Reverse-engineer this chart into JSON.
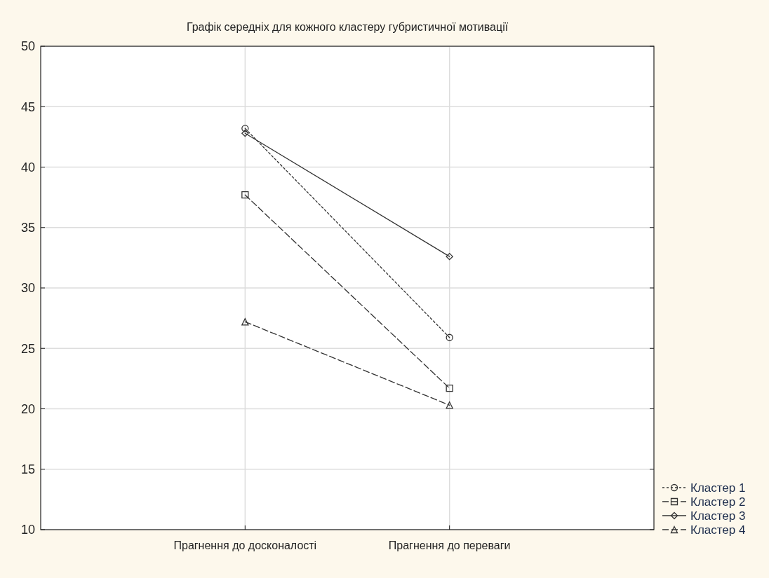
{
  "chart_data": {
    "type": "line",
    "title": "Графік середніх для кожного кластеру губристичної мотивації",
    "categories": [
      "Прагнення до досконалості",
      "Прагнення до переваги"
    ],
    "series": [
      {
        "name": "Кластер 1",
        "color": "#333333",
        "values": [
          43.2,
          25.9
        ],
        "marker": "circle",
        "line_style": "dotted"
      },
      {
        "name": "Кластер 2",
        "color": "#333333",
        "values": [
          37.7,
          21.7
        ],
        "marker": "square",
        "line_style": "dashed"
      },
      {
        "name": "Кластер 3",
        "color": "#333333",
        "values": [
          42.8,
          32.6
        ],
        "marker": "diamond",
        "line_style": "solid"
      },
      {
        "name": "Кластер 4",
        "color": "#333333",
        "values": [
          27.2,
          20.3
        ],
        "marker": "triangle",
        "line_style": "dashed"
      }
    ],
    "ylim": [
      10,
      50
    ],
    "yticks": [
      10,
      15,
      20,
      25,
      30,
      35,
      40,
      45,
      50
    ],
    "grid": true,
    "legend": "bottom right"
  }
}
